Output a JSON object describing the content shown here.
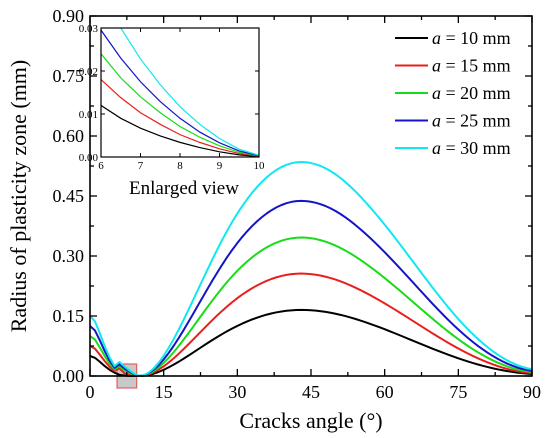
{
  "chart_data": [
    {
      "type": "line",
      "xlabel": "Cracks angle (°)",
      "ylabel": "Radius of plasticity zone (mm)",
      "xlim": [
        0,
        90
      ],
      "ylim": [
        0,
        0.9
      ],
      "xticks": [
        "0",
        "15",
        "30",
        "45",
        "60",
        "75",
        "90"
      ],
      "yticks": [
        "0.00",
        "0.15",
        "0.30",
        "0.45",
        "0.60",
        "0.75",
        "0.90"
      ],
      "legend_position": "top-right",
      "highlight_region": {
        "x": [
          5.5,
          9.5
        ],
        "y": [
          -0.03,
          0.03
        ],
        "color": "#c8c8c8",
        "border": "#e06060"
      },
      "legend": [
        {
          "var": "a",
          "text": " = 10 mm",
          "color": "#000000"
        },
        {
          "var": "a",
          "text": " = 15 mm",
          "color": "#e8201c"
        },
        {
          "var": "a",
          "text": " = 20 mm",
          "color": "#18dc18"
        },
        {
          "var": "a",
          "text": " = 25 mm",
          "color": "#1414c8"
        },
        {
          "var": "a",
          "text": " = 30 mm",
          "color": "#10e8f0"
        }
      ],
      "x": [
        0,
        1,
        2,
        3,
        4,
        5,
        6,
        7,
        8,
        9,
        10,
        11,
        12,
        13,
        14,
        15,
        16,
        17,
        18,
        19,
        20,
        21,
        22,
        23,
        24,
        25,
        26,
        27,
        28,
        29,
        30,
        31,
        32,
        33,
        34,
        35,
        36,
        37,
        38,
        39,
        40,
        41,
        42,
        43,
        44,
        45,
        46,
        47,
        48,
        49,
        50,
        51,
        52,
        53,
        54,
        55,
        56,
        57,
        58,
        59,
        60,
        61,
        62,
        63,
        64,
        65,
        66,
        67,
        68,
        69,
        70,
        71,
        72,
        73,
        74,
        75,
        76,
        77,
        78,
        79,
        80,
        81,
        82,
        83,
        84,
        85,
        86,
        87,
        88,
        89,
        90
      ],
      "series": [
        {
          "color": "#000000",
          "values": [
            0.05,
            0.0456,
            0.0357,
            0.0248,
            0.0154,
            0.0083,
            0.0029,
            0.0012,
            0.0002,
            0.0001,
            0.0,
            0.0007,
            0.0027,
            0.006,
            0.0103,
            0.0155,
            0.0215,
            0.0281,
            0.0352,
            0.0428,
            0.0506,
            0.0586,
            0.0667,
            0.0748,
            0.0828,
            0.0906,
            0.0982,
            0.1055,
            0.1125,
            0.119,
            0.1252,
            0.131,
            0.1364,
            0.1413,
            0.1458,
            0.1499,
            0.1535,
            0.1566,
            0.1592,
            0.1613,
            0.163,
            0.1642,
            0.1649,
            0.1652,
            0.165,
            0.1644,
            0.1634,
            0.162,
            0.1603,
            0.1582,
            0.1557,
            0.1529,
            0.1498,
            0.1464,
            0.1428,
            0.1389,
            0.1349,
            0.1306,
            0.1262,
            0.1216,
            0.1169,
            0.1121,
            0.1072,
            0.1022,
            0.0972,
            0.0921,
            0.0871,
            0.082,
            0.077,
            0.072,
            0.0671,
            0.0623,
            0.0576,
            0.053,
            0.0485,
            0.0442,
            0.0401,
            0.0361,
            0.0324,
            0.0288,
            0.0254,
            0.0223,
            0.0194,
            0.0167,
            0.0143,
            0.0121,
            0.0102,
            0.0085,
            0.0071,
            0.006,
            0.0051
          ]
        },
        {
          "color": "#e8201c",
          "values": [
            0.075,
            0.0684,
            0.0535,
            0.0372,
            0.0231,
            0.0124,
            0.019,
            0.007,
            0.0029,
            0.001,
            0.0,
            0.0011,
            0.0042,
            0.0093,
            0.016,
            0.0241,
            0.0334,
            0.0437,
            0.0548,
            0.0665,
            0.0787,
            0.0911,
            0.1037,
            0.1162,
            0.1286,
            0.1408,
            0.1526,
            0.1639,
            0.1747,
            0.185,
            0.1946,
            0.2035,
            0.2118,
            0.2194,
            0.2263,
            0.2325,
            0.238,
            0.2428,
            0.2469,
            0.2502,
            0.2528,
            0.2546,
            0.2557,
            0.2561,
            0.2557,
            0.2547,
            0.2531,
            0.2509,
            0.2481,
            0.2448,
            0.241,
            0.2367,
            0.2319,
            0.2267,
            0.2211,
            0.2152,
            0.2089,
            0.2024,
            0.1957,
            0.1887,
            0.1815,
            0.1742,
            0.1667,
            0.1591,
            0.1514,
            0.1436,
            0.1358,
            0.128,
            0.1202,
            0.1124,
            0.1047,
            0.0972,
            0.0898,
            0.0825,
            0.0755,
            0.0687,
            0.0622,
            0.0559,
            0.0499,
            0.0442,
            0.0389,
            0.0339,
            0.0292,
            0.0249,
            0.021,
            0.0176,
            0.0146,
            0.012,
            0.01,
            0.0085,
            0.0075
          ]
        },
        {
          "color": "#18dc18",
          "values": [
            0.1,
            0.0912,
            0.0713,
            0.0496,
            0.0308,
            0.0165,
            0.024,
            0.0145,
            0.0075,
            0.0025,
            0.0,
            0.0014,
            0.0057,
            0.0126,
            0.0216,
            0.0326,
            0.0452,
            0.0591,
            0.0741,
            0.0899,
            0.1063,
            0.123,
            0.14,
            0.1569,
            0.1737,
            0.1901,
            0.2061,
            0.2215,
            0.2362,
            0.25,
            0.263,
            0.2751,
            0.2863,
            0.2966,
            0.3059,
            0.3143,
            0.3217,
            0.3282,
            0.3337,
            0.3382,
            0.3417,
            0.3442,
            0.3457,
            0.3462,
            0.3458,
            0.3445,
            0.3424,
            0.3394,
            0.3357,
            0.3312,
            0.326,
            0.3201,
            0.3136,
            0.3065,
            0.2989,
            0.2908,
            0.2823,
            0.2734,
            0.2642,
            0.2547,
            0.2449,
            0.2349,
            0.2247,
            0.2143,
            0.2038,
            0.1932,
            0.1826,
            0.172,
            0.1614,
            0.1509,
            0.1405,
            0.1303,
            0.1203,
            0.1105,
            0.101,
            0.0919,
            0.0831,
            0.0747,
            0.0667,
            0.0592,
            0.0521,
            0.0454,
            0.0392,
            0.0336,
            0.0285,
            0.0239,
            0.0199,
            0.0165,
            0.0138,
            0.0117,
            0.0102
          ]
        },
        {
          "color": "#1414c8",
          "values": [
            0.125,
            0.114,
            0.0891,
            0.062,
            0.0385,
            0.0206,
            0.029,
            0.019,
            0.011,
            0.0045,
            0.0,
            0.0018,
            0.0072,
            0.0159,
            0.0273,
            0.0412,
            0.0572,
            0.0747,
            0.0936,
            0.1136,
            0.1343,
            0.1554,
            0.1768,
            0.1982,
            0.2194,
            0.2402,
            0.2604,
            0.2799,
            0.2985,
            0.316,
            0.3324,
            0.3477,
            0.3618,
            0.3748,
            0.3866,
            0.3972,
            0.4066,
            0.4148,
            0.4218,
            0.4275,
            0.432,
            0.4352,
            0.4371,
            0.4377,
            0.4372,
            0.4356,
            0.433,
            0.4293,
            0.4247,
            0.4191,
            0.4125,
            0.405,
            0.3966,
            0.3876,
            0.3779,
            0.3676,
            0.3568,
            0.3456,
            0.3339,
            0.3219,
            0.3095,
            0.2968,
            0.2839,
            0.2708,
            0.2575,
            0.2441,
            0.2307,
            0.2172,
            0.2038,
            0.1905,
            0.1774,
            0.1645,
            0.1519,
            0.1396,
            0.1277,
            0.1162,
            0.1052,
            0.0947,
            0.0847,
            0.0752,
            0.0663,
            0.058,
            0.0502,
            0.0431,
            0.0366,
            0.0308,
            0.0257,
            0.0213,
            0.0177,
            0.0148,
            0.0128
          ]
        },
        {
          "color": "#10e8f0",
          "values": [
            0.15,
            0.1368,
            0.1069,
            0.0744,
            0.0462,
            0.0247,
            0.035,
            0.024,
            0.014,
            0.006,
            0.0,
            0.0022,
            0.0088,
            0.0193,
            0.0333,
            0.0503,
            0.0699,
            0.0914,
            0.1145,
            0.1389,
            0.1642,
            0.19,
            0.2161,
            0.2422,
            0.2681,
            0.2935,
            0.3183,
            0.3421,
            0.3648,
            0.3862,
            0.4062,
            0.4249,
            0.4421,
            0.458,
            0.4724,
            0.4854,
            0.4969,
            0.5069,
            0.5154,
            0.5224,
            0.5279,
            0.5318,
            0.5342,
            0.5349,
            0.5343,
            0.5324,
            0.5292,
            0.5247,
            0.519,
            0.5121,
            0.5041,
            0.495,
            0.4848,
            0.4738,
            0.462,
            0.4494,
            0.4362,
            0.4224,
            0.4082,
            0.3935,
            0.3783,
            0.3628,
            0.3471,
            0.3311,
            0.3149,
            0.2985,
            0.2821,
            0.2657,
            0.2493,
            0.2331,
            0.2171,
            0.2014,
            0.186,
            0.171,
            0.1564,
            0.1424,
            0.129,
            0.1162,
            0.104,
            0.0925,
            0.0817,
            0.0716,
            0.0622,
            0.0536,
            0.0458,
            0.0388,
            0.0326,
            0.0273,
            0.0229,
            0.0194,
            0.017
          ]
        }
      ]
    },
    {
      "type": "line",
      "title": "Enlarged view",
      "xlim": [
        6,
        10
      ],
      "ylim": [
        0,
        0.03
      ],
      "xticks": [
        "6",
        "7",
        "8",
        "9",
        "10"
      ],
      "yticks": [
        "0.00",
        "0.01",
        "0.02",
        "0.03"
      ],
      "x": [
        6,
        6.5,
        7,
        7.5,
        8,
        8.5,
        9,
        9.5,
        10
      ],
      "series": [
        {
          "color": "#000000",
          "values": [
            0.012,
            0.009,
            0.0067,
            0.0049,
            0.0034,
            0.0022,
            0.0012,
            0.0005,
            0.0001
          ]
        },
        {
          "color": "#e8201c",
          "values": [
            0.018,
            0.0138,
            0.0103,
            0.0076,
            0.0052,
            0.0034,
            0.0019,
            0.0008,
            0.0002
          ]
        },
        {
          "color": "#18dc18",
          "values": [
            0.024,
            0.0184,
            0.014,
            0.0103,
            0.0071,
            0.0046,
            0.0026,
            0.0011,
            0.0003
          ]
        },
        {
          "color": "#1414c8",
          "values": [
            0.0295,
            0.023,
            0.0175,
            0.0129,
            0.009,
            0.0058,
            0.0033,
            0.0014,
            0.0003
          ]
        },
        {
          "color": "#10e8f0",
          "values": [
            null,
            0.03,
            0.0228,
            0.0168,
            0.0117,
            0.0076,
            0.0043,
            0.0018,
            0.0004
          ]
        }
      ]
    }
  ]
}
